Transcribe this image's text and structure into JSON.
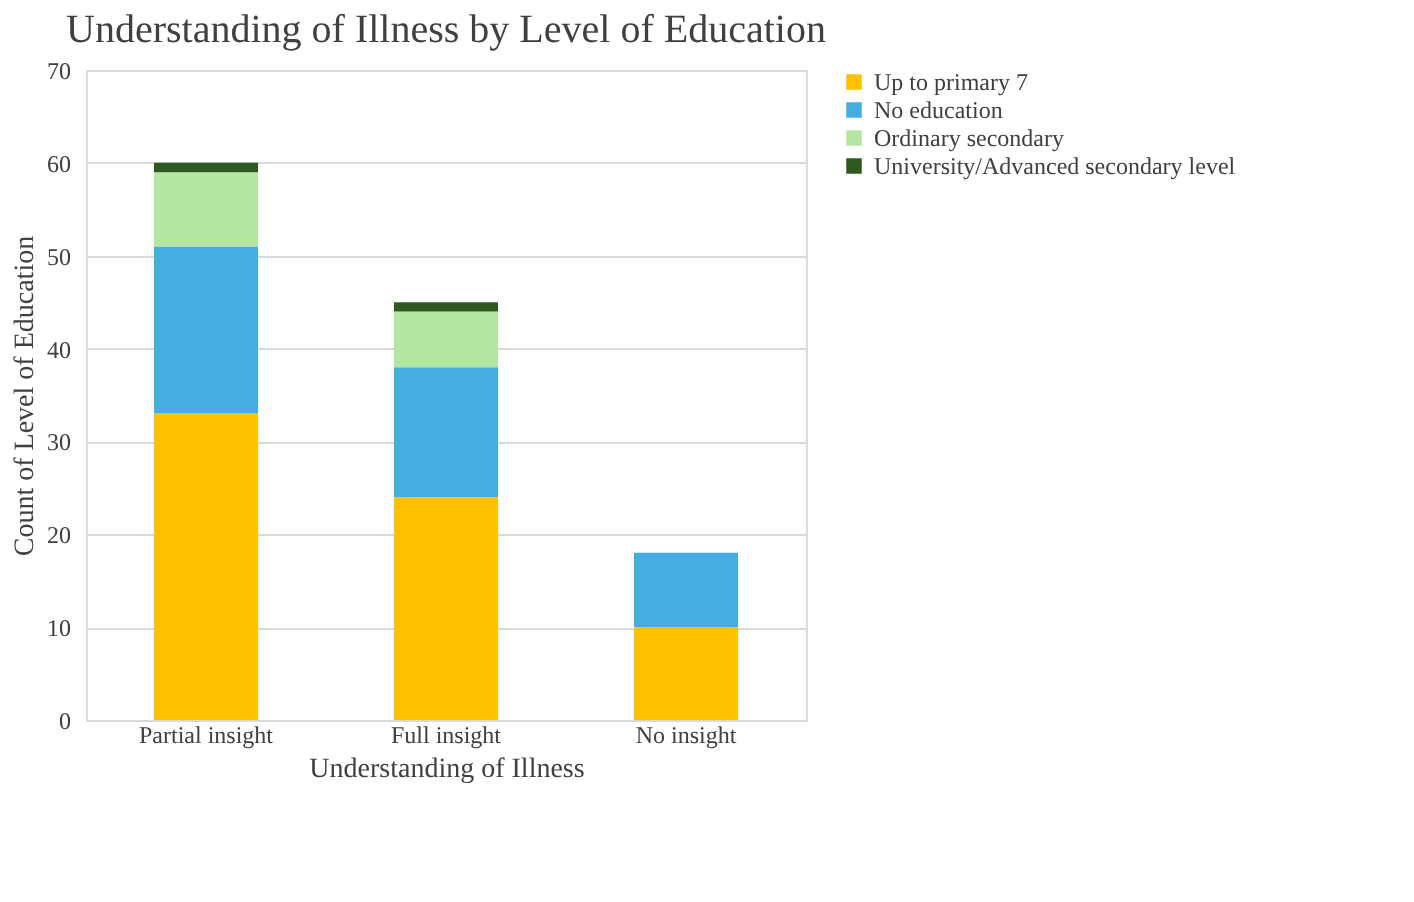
{
  "chart_data": {
    "type": "bar",
    "stacked": true,
    "title": "Understanding of Illness by Level of Education",
    "xlabel": "Understanding of Illness",
    "ylabel": "Count of Level of Education",
    "categories": [
      "Partial insight",
      "Full insight",
      "No insight"
    ],
    "series": [
      {
        "name": "Up to primary 7",
        "color": "#ffc000",
        "values": [
          33,
          24,
          10
        ]
      },
      {
        "name": "No education",
        "color": "#45addf",
        "values": [
          18,
          14,
          8
        ]
      },
      {
        "name": "Ordinary secondary",
        "color": "#b4e5a2",
        "values": [
          8,
          6,
          0
        ]
      },
      {
        "name": "University/Advanced secondary level",
        "color": "#2e5a1f",
        "values": [
          1,
          1,
          0
        ]
      }
    ],
    "ylim": [
      0,
      70
    ],
    "yticks": [
      0,
      10,
      20,
      30,
      40,
      50,
      60,
      70
    ],
    "grid": "y",
    "legend": "right"
  }
}
